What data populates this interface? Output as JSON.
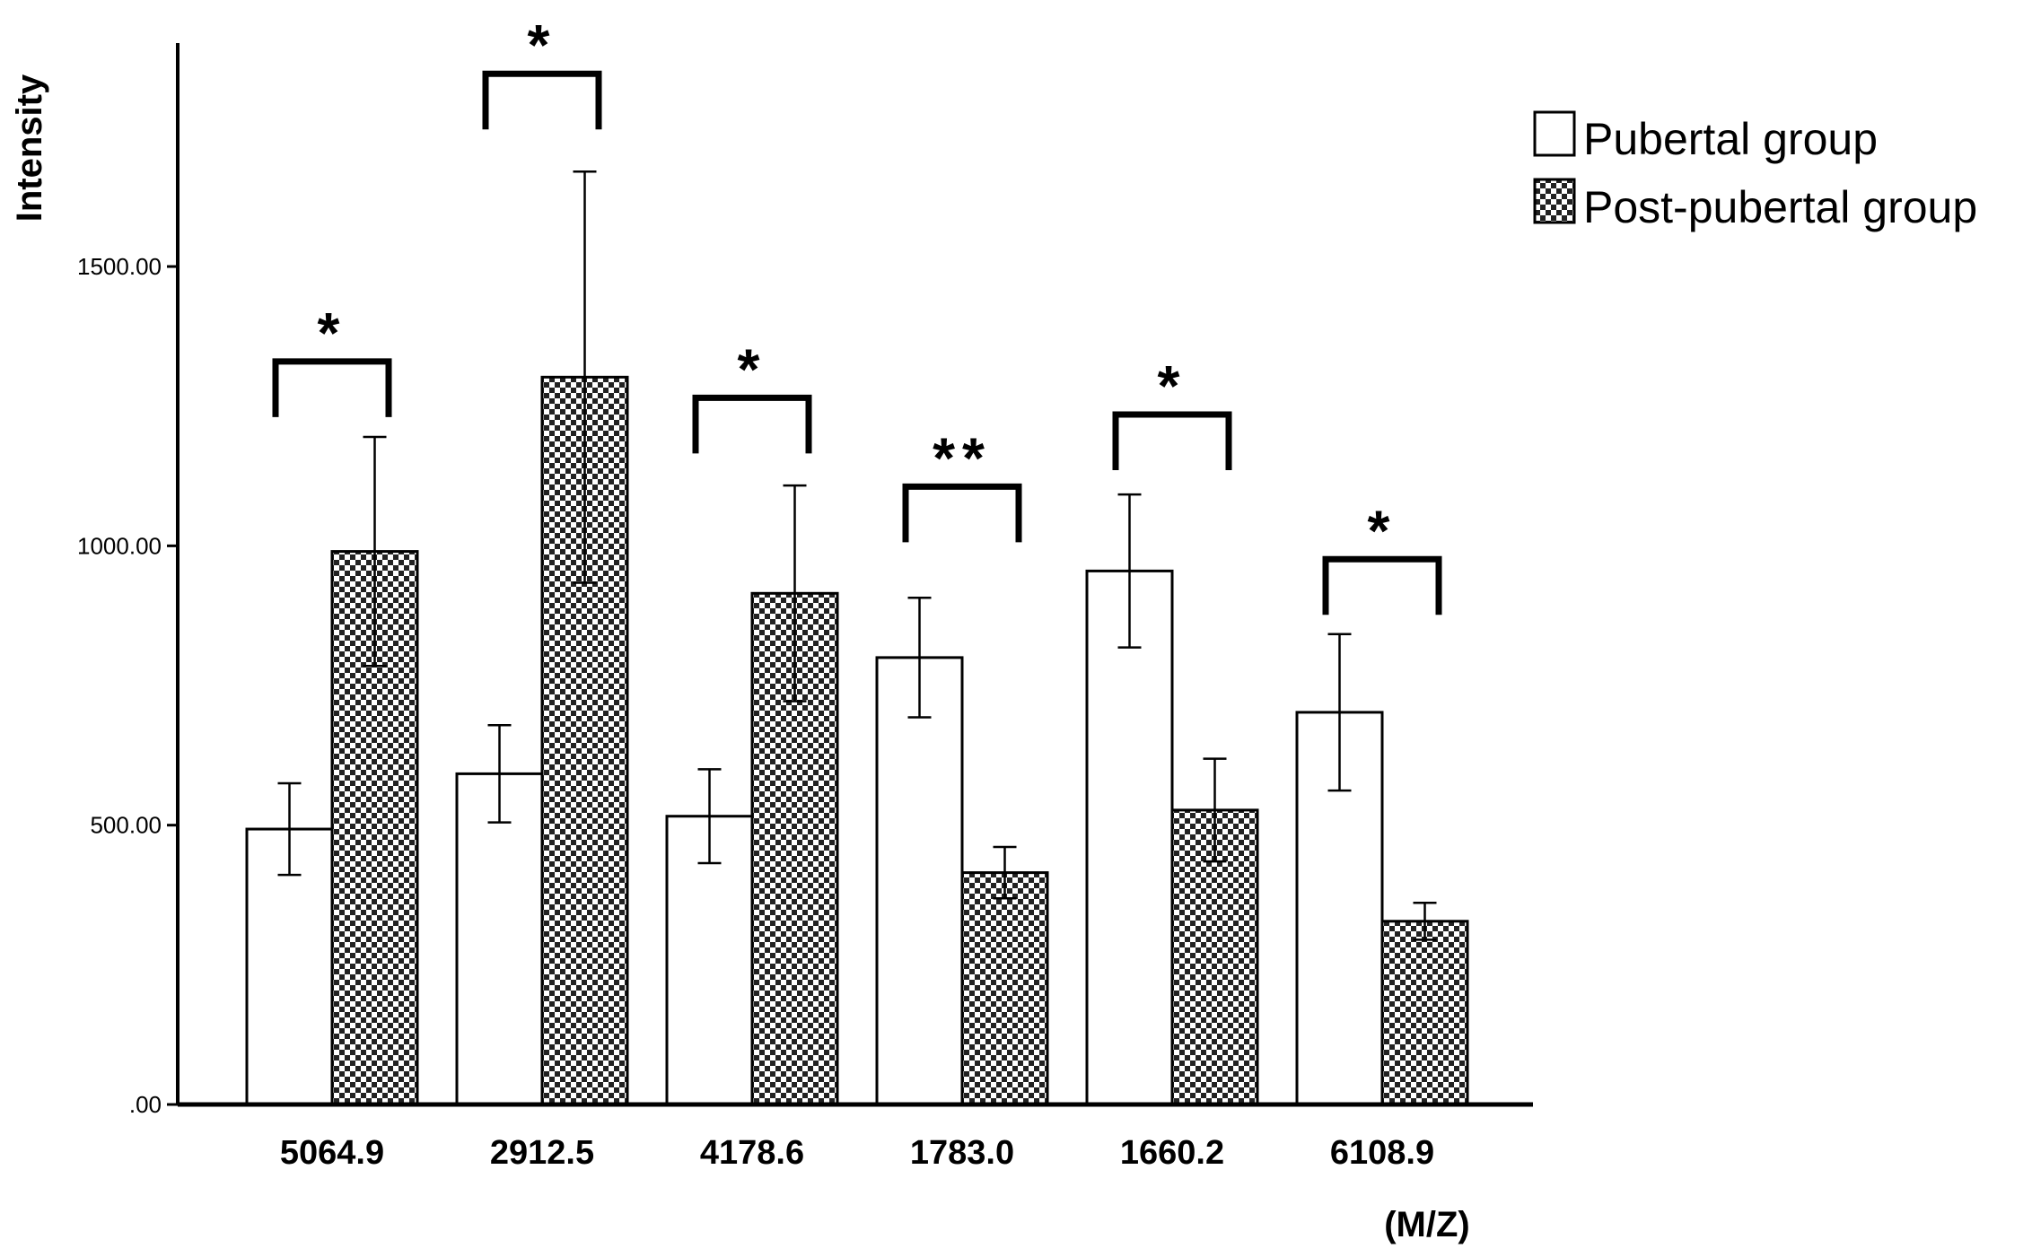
{
  "chart_data": {
    "type": "bar",
    "title": "",
    "ylabel": "Intensity",
    "xlabel": "(M/Z)",
    "ylim": [
      0,
      1900
    ],
    "yticks": [
      0,
      500,
      1000,
      1500
    ],
    "ytick_labels": [
      ".00",
      "500.00",
      "1000.00",
      "1500.00"
    ],
    "categories": [
      "5064.9",
      "2912.5",
      "4178.6",
      "1783.0",
      "1660.2",
      "6108.9"
    ],
    "series": [
      {
        "name": "Pubertal group",
        "fill": "#ffffff",
        "values": [
          493,
          592,
          516,
          800,
          955,
          702
        ],
        "error": [
          82,
          87,
          84,
          107,
          137,
          140
        ]
      },
      {
        "name": "Post-pubertal group",
        "fill": "checker",
        "values": [
          990,
          1302,
          915,
          415,
          527,
          328
        ],
        "error": [
          205,
          368,
          193,
          46,
          92,
          33
        ]
      }
    ],
    "significance": [
      {
        "category": "5064.9",
        "label": "*",
        "y": 1330
      },
      {
        "category": "2912.5",
        "label": "*",
        "y": 1845
      },
      {
        "category": "4178.6",
        "label": "*",
        "y": 1265
      },
      {
        "category": "1783.0",
        "label": "**",
        "y": 1106
      },
      {
        "category": "1660.2",
        "label": "*",
        "y": 1235
      },
      {
        "category": "6108.9",
        "label": "*",
        "y": 976
      }
    ],
    "legend_position": "top-right",
    "grid": false
  }
}
